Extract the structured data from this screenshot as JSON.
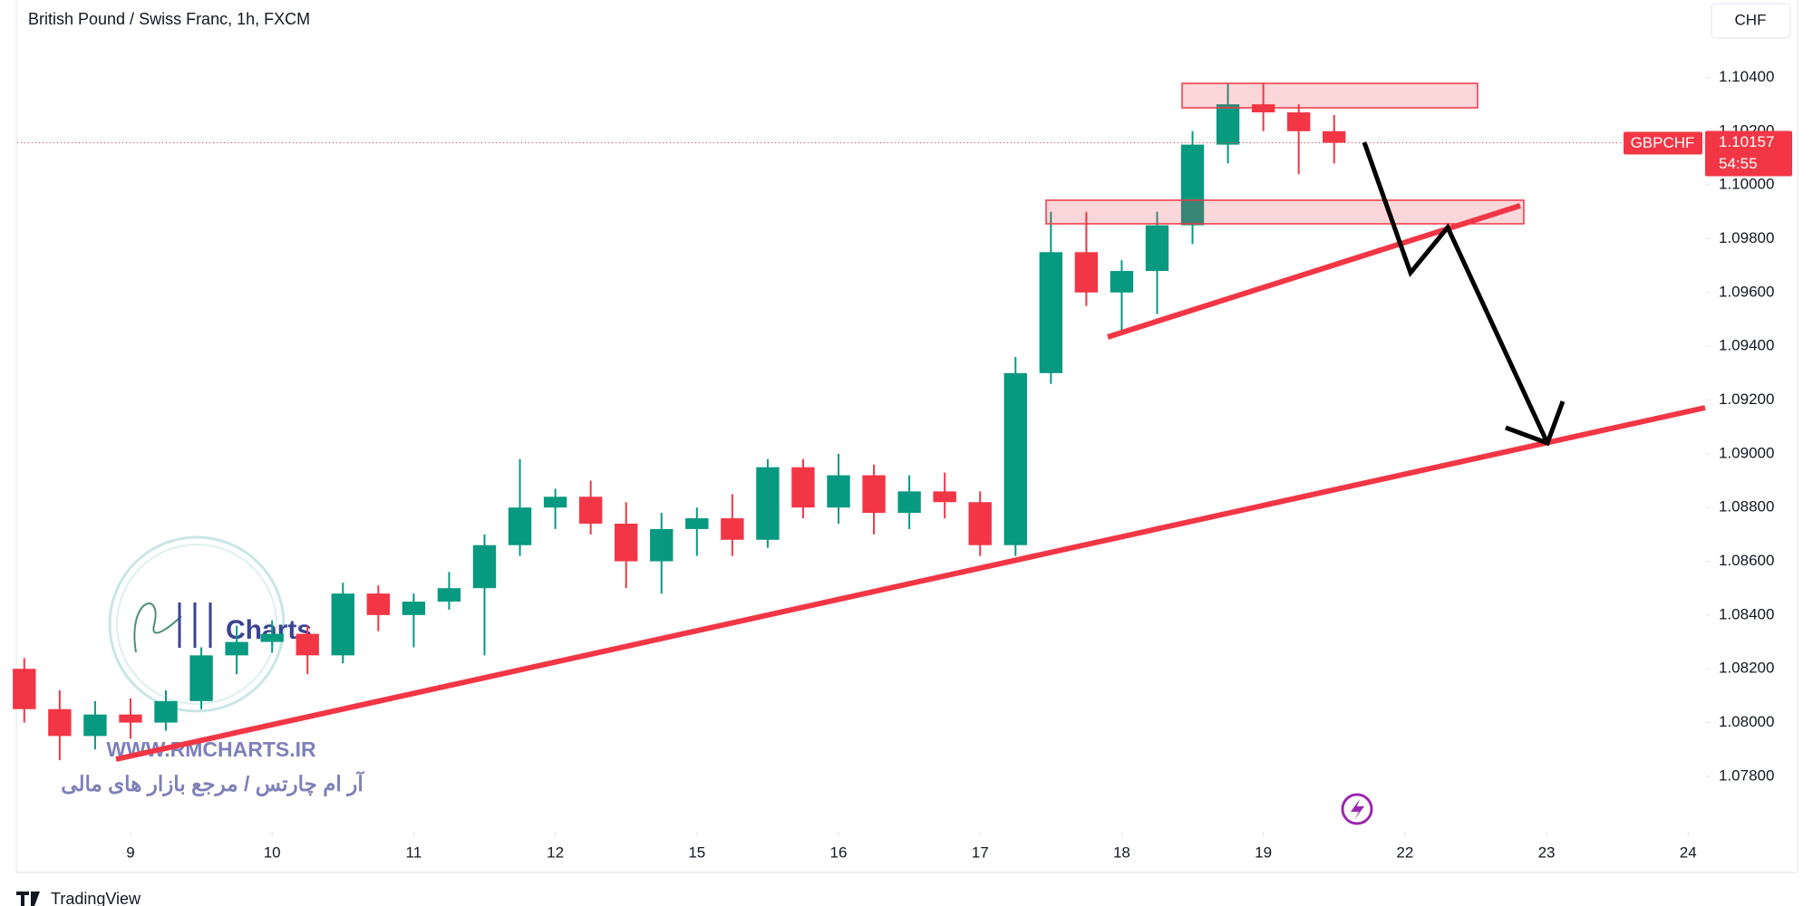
{
  "chart_data": {
    "type": "candlestick",
    "title": "British Pound / Swiss Franc, 1h, FXCM",
    "currency": "CHF",
    "symbol": "GBPCHF",
    "last_price": 1.10157,
    "countdown": "54:55",
    "up_color": "#089981",
    "down_color": "#f23645",
    "x": [
      -0.75,
      -0.5,
      -0.25,
      0,
      0.25,
      0.5,
      0.75,
      1,
      1.25,
      1.5,
      1.75,
      2,
      2.25,
      2.5,
      2.75,
      3,
      3.25,
      3.5,
      3.75,
      4,
      4.25,
      4.5,
      4.75,
      5,
      5.25,
      5.5,
      5.75,
      6,
      6.25,
      6.5,
      6.75,
      7,
      7.25,
      7.5,
      7.75,
      8,
      8.25,
      8.5
    ],
    "open": [
      1.082,
      1.0805,
      1.0795,
      1.0803,
      1.08,
      1.0808,
      1.0825,
      1.083,
      1.0833,
      1.0825,
      1.0848,
      1.084,
      1.0845,
      1.085,
      1.0866,
      1.088,
      1.0884,
      1.0874,
      1.086,
      1.0872,
      1.0876,
      1.0868,
      1.0895,
      1.088,
      1.0892,
      1.0878,
      1.0886,
      1.0882,
      1.0866,
      1.093,
      1.0975,
      1.096,
      1.0968,
      1.0985,
      1.1015,
      1.103,
      1.1027,
      1.102
    ],
    "high": [
      1.0824,
      1.0812,
      1.0808,
      1.0809,
      1.0812,
      1.0828,
      1.0836,
      1.0838,
      1.0836,
      1.0852,
      1.0851,
      1.0848,
      1.0856,
      1.087,
      1.0898,
      1.0887,
      1.089,
      1.0882,
      1.0878,
      1.088,
      1.0885,
      1.0898,
      1.0898,
      1.09,
      1.0896,
      1.0892,
      1.0893,
      1.0886,
      1.0936,
      1.099,
      1.099,
      1.0972,
      1.099,
      1.102,
      1.1038,
      1.1038,
      1.103,
      1.1026
    ],
    "low": [
      1.08,
      1.0786,
      1.079,
      1.0794,
      1.0797,
      1.0805,
      1.0818,
      1.0826,
      1.0818,
      1.0822,
      1.0834,
      1.0828,
      1.0842,
      1.0825,
      1.0862,
      1.0872,
      1.087,
      1.085,
      1.0848,
      1.0862,
      1.0862,
      1.0865,
      1.0876,
      1.0874,
      1.087,
      1.0872,
      1.0876,
      1.0862,
      1.0862,
      1.0926,
      1.0955,
      1.0944,
      1.0952,
      1.0978,
      1.1008,
      1.102,
      1.1004,
      1.1008
    ],
    "close": [
      1.0805,
      1.0795,
      1.0803,
      1.08,
      1.0808,
      1.0825,
      1.083,
      1.0833,
      1.0825,
      1.0848,
      1.084,
      1.0845,
      1.085,
      1.0866,
      1.088,
      1.0884,
      1.0874,
      1.086,
      1.0872,
      1.0876,
      1.0868,
      1.0895,
      1.088,
      1.0892,
      1.0878,
      1.0886,
      1.0882,
      1.0866,
      1.093,
      1.0975,
      1.096,
      1.0968,
      1.0985,
      1.1015,
      1.103,
      1.1027,
      1.102,
      1.10157
    ],
    "xlim": [
      -0.8,
      11.12
    ],
    "xticks": [
      {
        "value": 0,
        "label": "9"
      },
      {
        "value": 1,
        "label": "10"
      },
      {
        "value": 2,
        "label": "11"
      },
      {
        "value": 3,
        "label": "12"
      },
      {
        "value": 4,
        "label": "15"
      },
      {
        "value": 5,
        "label": "16"
      },
      {
        "value": 6,
        "label": "17"
      },
      {
        "value": 7,
        "label": "18"
      },
      {
        "value": 8,
        "label": "19"
      },
      {
        "value": 9,
        "label": "22"
      },
      {
        "value": 10,
        "label": "23"
      },
      {
        "value": 11,
        "label": "24"
      }
    ],
    "ylim": [
      1.07594,
      1.10688
    ],
    "yticks": [
      {
        "value": 1.078,
        "label": "1.07800"
      },
      {
        "value": 1.08,
        "label": "1.08000"
      },
      {
        "value": 1.082,
        "label": "1.08200"
      },
      {
        "value": 1.084,
        "label": "1.08400"
      },
      {
        "value": 1.086,
        "label": "1.08600"
      },
      {
        "value": 1.088,
        "label": "1.08800"
      },
      {
        "value": 1.09,
        "label": "1.09000"
      },
      {
        "value": 1.092,
        "label": "1.09200"
      },
      {
        "value": 1.094,
        "label": "1.09400"
      },
      {
        "value": 1.096,
        "label": "1.09600"
      },
      {
        "value": 1.098,
        "label": "1.09800"
      },
      {
        "value": 1.1,
        "label": "1.10000"
      },
      {
        "value": 1.102,
        "label": "1.10200"
      },
      {
        "value": 1.104,
        "label": "1.10400"
      }
    ]
  },
  "watermark": {
    "logo": "Charts",
    "url": "WWW.RMCHARTS.IR",
    "tagline": "آر ام چارتس / مرجع بازار های مالی"
  },
  "footer": "TradingView"
}
